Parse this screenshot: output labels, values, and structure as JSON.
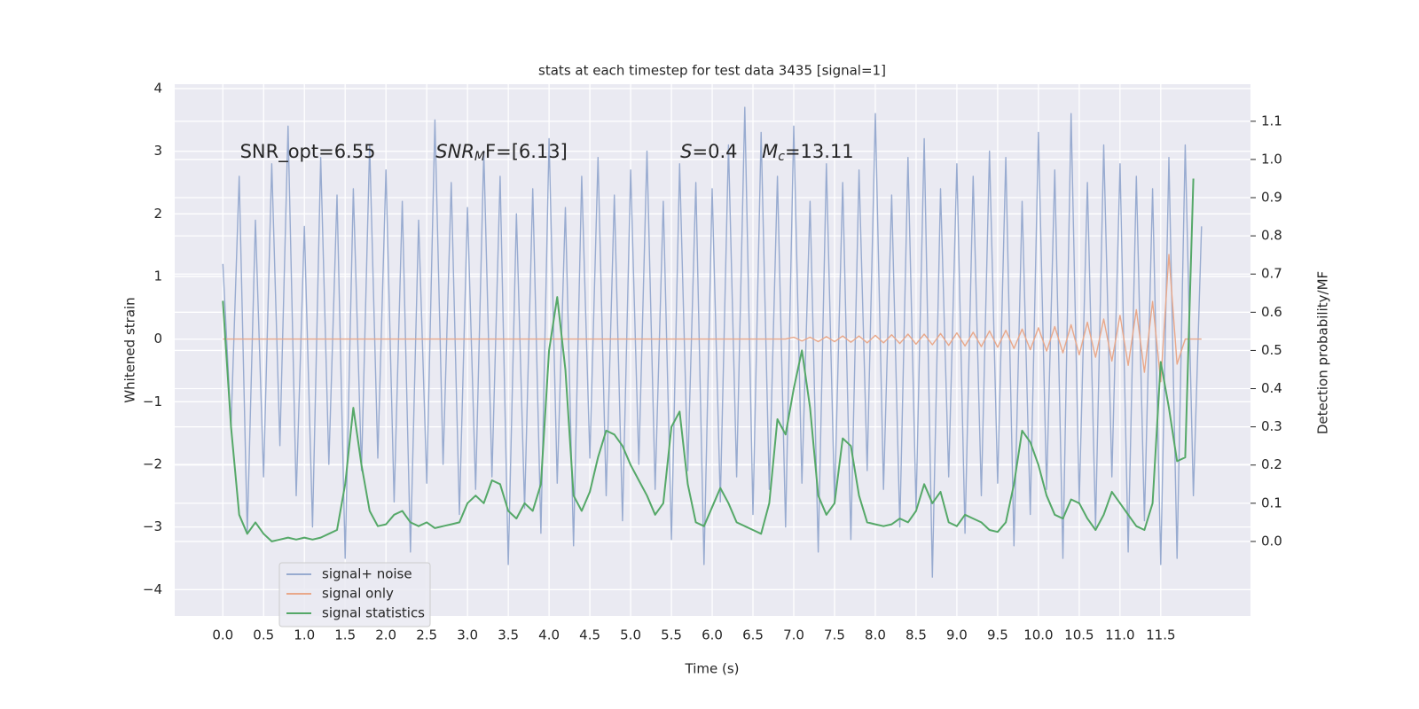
{
  "chart_data": {
    "type": "line",
    "title": "stats at each timestep for test data 3435 [signal=1]",
    "xlabel": "Time (s)",
    "ylabel": "Whitened strain",
    "y2label": "Detection probability/MF",
    "x": [
      0.0,
      0.1,
      0.2,
      0.3,
      0.4,
      0.5,
      0.6,
      0.7,
      0.8,
      0.9,
      1.0,
      1.1,
      1.2,
      1.3,
      1.4,
      1.5,
      1.6,
      1.7,
      1.8,
      1.9,
      2.0,
      2.1,
      2.2,
      2.3,
      2.4,
      2.5,
      2.6,
      2.7,
      2.8,
      2.9,
      3.0,
      3.1,
      3.2,
      3.3,
      3.4,
      3.5,
      3.6,
      3.7,
      3.8,
      3.9,
      4.0,
      4.1,
      4.2,
      4.3,
      4.4,
      4.5,
      4.6,
      4.7,
      4.8,
      4.9,
      5.0,
      5.1,
      5.2,
      5.3,
      5.4,
      5.5,
      5.6,
      5.7,
      5.8,
      5.9,
      6.0,
      6.1,
      6.2,
      6.3,
      6.4,
      6.5,
      6.6,
      6.7,
      6.8,
      6.9,
      7.0,
      7.1,
      7.2,
      7.3,
      7.4,
      7.5,
      7.6,
      7.7,
      7.8,
      7.9,
      8.0,
      8.1,
      8.2,
      8.3,
      8.4,
      8.5,
      8.6,
      8.7,
      8.8,
      8.9,
      9.0,
      9.1,
      9.2,
      9.3,
      9.4,
      9.5,
      9.6,
      9.7,
      9.8,
      9.9,
      10.0,
      10.1,
      10.2,
      10.3,
      10.4,
      10.5,
      10.6,
      10.7,
      10.8,
      10.9,
      11.0,
      11.1,
      11.2,
      11.3,
      11.4,
      11.5,
      11.6,
      11.7,
      11.8,
      11.9,
      12.0
    ],
    "series": [
      {
        "name": "signal+ noise",
        "color": "#98abd0",
        "axis": "y",
        "values": [
          1.2,
          -1.4,
          2.6,
          -3.1,
          1.9,
          -2.2,
          2.8,
          -1.7,
          3.4,
          -2.5,
          1.8,
          -3.0,
          2.9,
          -2.0,
          2.3,
          -3.5,
          2.4,
          -2.1,
          3.1,
          -1.9,
          2.7,
          -2.6,
          2.2,
          -3.4,
          1.9,
          -2.3,
          3.5,
          -2.0,
          2.5,
          -2.8,
          2.1,
          -2.4,
          3.0,
          -2.2,
          2.6,
          -3.6,
          2.0,
          -2.7,
          2.4,
          -3.1,
          3.2,
          -2.3,
          2.1,
          -3.3,
          2.6,
          -1.9,
          2.9,
          -2.5,
          2.3,
          -2.9,
          2.7,
          -2.0,
          3.0,
          -2.4,
          2.2,
          -3.2,
          2.8,
          -2.1,
          2.5,
          -3.6,
          2.4,
          -2.6,
          3.1,
          -2.2,
          3.7,
          -2.8,
          3.3,
          -2.4,
          2.6,
          -3.0,
          3.4,
          -2.3,
          2.2,
          -3.4,
          2.8,
          -2.6,
          2.5,
          -3.2,
          2.7,
          -2.1,
          3.6,
          -2.4,
          2.3,
          -3.0,
          2.9,
          -2.7,
          3.2,
          -3.8,
          2.4,
          -2.2,
          2.8,
          -3.1,
          2.6,
          -2.5,
          3.0,
          -2.3,
          2.9,
          -3.3,
          2.2,
          -2.8,
          3.3,
          -2.4,
          2.7,
          -3.5,
          3.6,
          -2.6,
          2.5,
          -3.0,
          3.1,
          -2.2,
          2.8,
          -3.4,
          2.6,
          -2.9,
          2.4,
          -3.6,
          2.9,
          -3.5,
          3.1,
          -2.5,
          1.8
        ]
      },
      {
        "name": "signal only",
        "color": "#e9a88a",
        "axis": "y",
        "values": [
          0,
          0,
          0,
          0,
          0,
          0,
          0,
          0,
          0,
          0,
          0,
          0,
          0,
          0,
          0,
          0,
          0,
          0,
          0,
          0,
          0,
          0,
          0,
          0,
          0,
          0,
          0,
          0,
          0,
          0,
          0,
          0,
          0,
          0,
          0,
          0,
          0,
          0,
          0,
          0,
          0,
          0,
          0,
          0,
          0,
          0,
          0,
          0,
          0,
          0,
          0,
          0,
          0,
          0,
          0,
          0,
          0,
          0,
          0,
          0,
          0,
          0,
          0,
          0,
          0,
          0,
          0,
          0,
          0,
          0,
          0.03,
          -0.03,
          0.03,
          -0.04,
          0.04,
          -0.04,
          0.05,
          -0.05,
          0.05,
          -0.06,
          0.06,
          -0.06,
          0.07,
          -0.07,
          0.08,
          -0.08,
          0.08,
          -0.09,
          0.09,
          -0.1,
          0.1,
          -0.11,
          0.11,
          -0.12,
          0.13,
          -0.13,
          0.14,
          -0.15,
          0.16,
          -0.17,
          0.18,
          -0.19,
          0.2,
          -0.22,
          0.23,
          -0.25,
          0.27,
          -0.29,
          0.32,
          -0.35,
          0.38,
          -0.42,
          0.47,
          -0.53,
          0.6,
          -0.68,
          1.35,
          -0.4,
          0,
          0,
          0
        ]
      },
      {
        "name": "signal statistics",
        "color": "#55a868",
        "axis": "y2",
        "values": [
          0.63,
          0.3,
          0.07,
          0.02,
          0.05,
          0.02,
          0.0,
          0.005,
          0.01,
          0.005,
          0.01,
          0.005,
          0.01,
          0.02,
          0.03,
          0.15,
          0.35,
          0.2,
          0.08,
          0.04,
          0.045,
          0.07,
          0.08,
          0.05,
          0.04,
          0.05,
          0.035,
          0.04,
          0.045,
          0.05,
          0.1,
          0.12,
          0.1,
          0.16,
          0.15,
          0.08,
          0.06,
          0.1,
          0.08,
          0.15,
          0.5,
          0.64,
          0.45,
          0.12,
          0.08,
          0.13,
          0.22,
          0.29,
          0.28,
          0.25,
          0.2,
          0.16,
          0.12,
          0.07,
          0.1,
          0.3,
          0.34,
          0.15,
          0.05,
          0.04,
          0.09,
          0.14,
          0.1,
          0.05,
          0.04,
          0.03,
          0.02,
          0.1,
          0.32,
          0.28,
          0.4,
          0.5,
          0.35,
          0.12,
          0.07,
          0.1,
          0.27,
          0.25,
          0.12,
          0.05,
          0.045,
          0.04,
          0.045,
          0.06,
          0.05,
          0.08,
          0.15,
          0.1,
          0.13,
          0.05,
          0.04,
          0.07,
          0.06,
          0.05,
          0.03,
          0.025,
          0.05,
          0.15,
          0.29,
          0.26,
          0.2,
          0.12,
          0.07,
          0.06,
          0.11,
          0.1,
          0.06,
          0.03,
          0.07,
          0.13,
          0.1,
          0.07,
          0.04,
          0.03,
          0.1,
          0.47,
          0.35,
          0.21,
          0.22,
          0.95,
          null
        ]
      }
    ],
    "xlim": [
      -0.59,
      12.6
    ],
    "ylim": [
      -4.42,
      4.07
    ],
    "y2lim": [
      -0.195,
      1.197
    ],
    "xticks": [
      {
        "value": 0,
        "label": "0.0"
      },
      0.5,
      {
        "value": 1,
        "label": "1.0"
      },
      1.5,
      {
        "value": 2,
        "label": "2.0"
      },
      2.5,
      {
        "value": 3,
        "label": "3.0"
      },
      3.5,
      {
        "value": 4,
        "label": "4.0"
      },
      4.5,
      {
        "value": 5,
        "label": "5.0"
      },
      5.5,
      {
        "value": 6,
        "label": "6.0"
      },
      6.5,
      {
        "value": 7,
        "label": "7.0"
      },
      7.5,
      {
        "value": 8,
        "label": "8.0"
      },
      8.5,
      {
        "value": 9,
        "label": "9.0"
      },
      9.5,
      {
        "value": 10,
        "label": "10.0"
      },
      10.5,
      {
        "value": 11,
        "label": "11.0"
      },
      11.5
    ],
    "yticks": [
      {
        "value": -4,
        "label": "−4"
      },
      {
        "value": -3,
        "label": "−3"
      },
      {
        "value": -2,
        "label": "−2"
      },
      {
        "value": -1,
        "label": "−1"
      },
      0,
      1,
      2,
      3,
      4
    ],
    "y2ticks": [
      {
        "value": 0,
        "label": "0.0"
      },
      0.1,
      0.2,
      0.3,
      0.4,
      0.5,
      0.6,
      0.7,
      0.8,
      0.9,
      {
        "value": 1,
        "label": "1.0"
      },
      1.1
    ],
    "grid": true,
    "legend": "lower left",
    "annotations": [
      {
        "x": 0.21,
        "y": 2.98,
        "text": "SNR_opt=6.55"
      },
      {
        "x": 2.61,
        "y": 2.98,
        "math": "SNR",
        "sub": "M",
        "text": "F=[6.13]"
      },
      {
        "x": 5.61,
        "y": 2.98,
        "math": "S",
        "text": "=0.4"
      },
      {
        "x": 6.61,
        "y": 2.98,
        "math": "M",
        "sub": "c",
        "text": "=13.11"
      }
    ]
  }
}
